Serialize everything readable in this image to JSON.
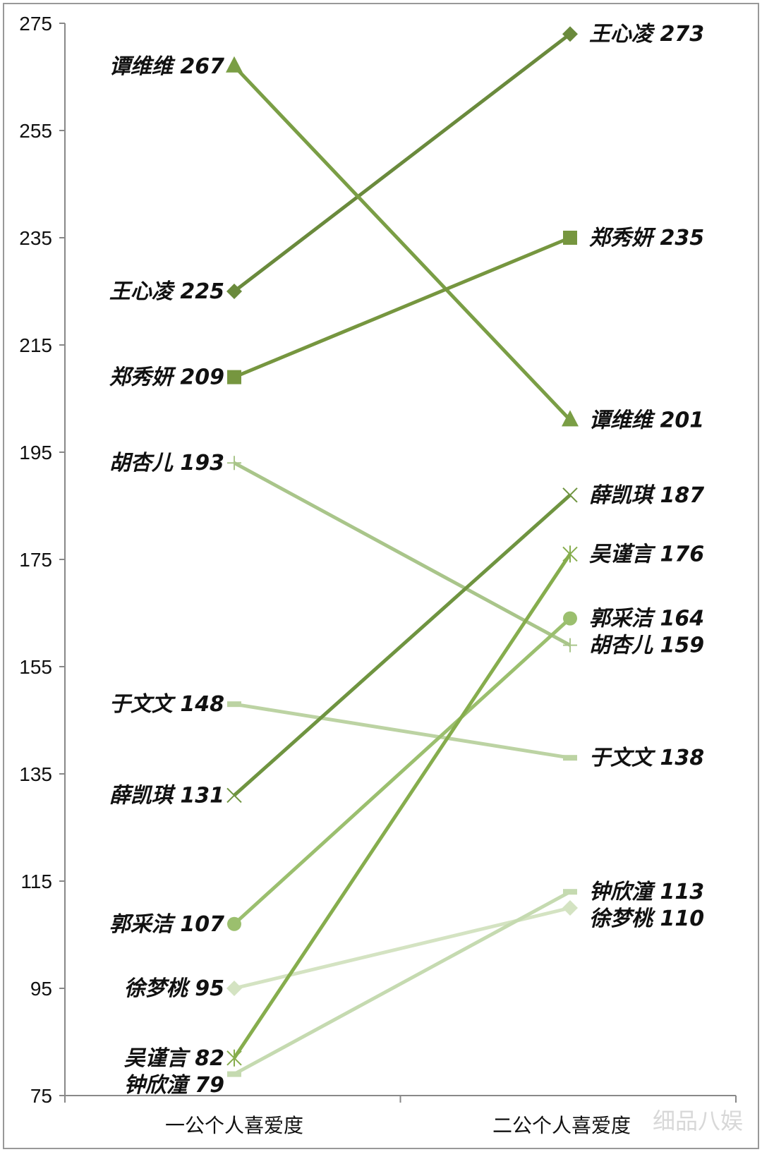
{
  "chart_data": {
    "type": "line",
    "subtype": "slope",
    "categories": [
      "一公个人喜爱度",
      "二公个人喜爱度"
    ],
    "ylim": [
      75,
      275
    ],
    "yticks": [
      75,
      95,
      115,
      135,
      155,
      175,
      195,
      215,
      235,
      255,
      275
    ],
    "grid": false,
    "legend": "none",
    "series": [
      {
        "name": "王心凌",
        "values": [
          225,
          273
        ],
        "color": "#6a8a3c",
        "marker": "diamond"
      },
      {
        "name": "谭维维",
        "values": [
          267,
          201
        ],
        "color": "#7a9e45",
        "marker": "triangle"
      },
      {
        "name": "郑秀妍",
        "values": [
          209,
          235
        ],
        "color": "#76963f",
        "marker": "square"
      },
      {
        "name": "胡杏儿",
        "values": [
          193,
          159
        ],
        "color": "#a9c58a",
        "marker": "plus"
      },
      {
        "name": "于文文",
        "values": [
          148,
          138
        ],
        "color": "#bcd3a3",
        "marker": "dash"
      },
      {
        "name": "薛凯琪",
        "values": [
          131,
          187
        ],
        "color": "#6f9440",
        "marker": "x"
      },
      {
        "name": "郭采洁",
        "values": [
          107,
          164
        ],
        "color": "#9bbf6e",
        "marker": "circle"
      },
      {
        "name": "徐梦桃",
        "values": [
          95,
          110
        ],
        "color": "#d4e3c2",
        "marker": "diamond"
      },
      {
        "name": "吴谨言",
        "values": [
          82,
          176
        ],
        "color": "#86ad4d",
        "marker": "star"
      },
      {
        "name": "钟欣潼",
        "values": [
          79,
          113
        ],
        "color": "#c5dab0",
        "marker": "dash"
      }
    ]
  },
  "watermark": "细品八娱"
}
